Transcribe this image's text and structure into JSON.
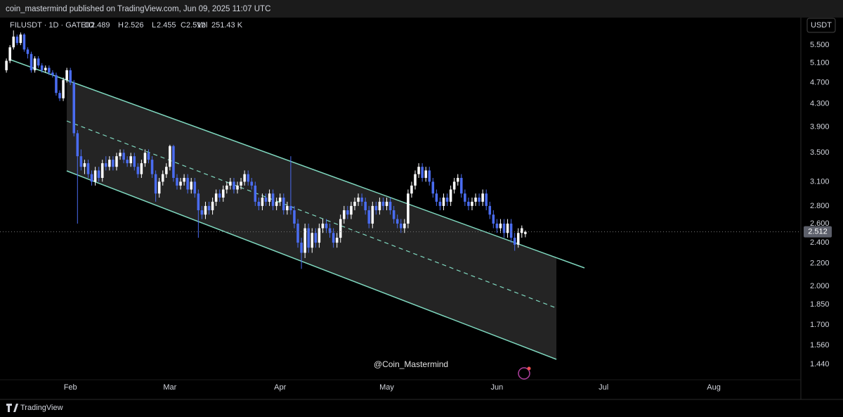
{
  "header": {
    "published": "coin_mastermind published on TradingView.com, Jun 09, 2025 11:07 UTC"
  },
  "footer": {
    "brand": "TradingView"
  },
  "chart_data": {
    "type": "candlestick",
    "symbol": "FILUSDT · 1D · GATEIO",
    "legend_keys": [
      "O",
      "H",
      "L",
      "C",
      "Vol"
    ],
    "volume": "251.43 K",
    "currency": "USDT",
    "watermark": "@Coin_Mastermind",
    "log_scale": true,
    "grid": false,
    "up_color": "#ffffff",
    "down_color": "#4a6cf0",
    "xlim": [
      -1.8,
      223.5
    ],
    "xticks": [
      {
        "value": 18,
        "label": "Feb"
      },
      {
        "value": 46,
        "label": "Mar"
      },
      {
        "value": 77,
        "label": "Apr"
      },
      {
        "value": 107,
        "label": "May"
      },
      {
        "value": 138,
        "label": "Jun"
      },
      {
        "value": 168,
        "label": "Jul"
      },
      {
        "value": 199,
        "label": "Aug"
      }
    ],
    "ylim": [
      1.35,
      6.12
    ],
    "yticks": [
      {
        "value": 5.5,
        "label": "5.500"
      },
      {
        "value": 5.1,
        "label": "5.100"
      },
      {
        "value": 4.7,
        "label": "4.700"
      },
      {
        "value": 4.3,
        "label": "4.300"
      },
      {
        "value": 3.9,
        "label": "3.900"
      },
      {
        "value": 3.5,
        "label": "3.500"
      },
      {
        "value": 3.1,
        "label": "3.100"
      },
      {
        "value": 2.8,
        "label": "2.800"
      },
      {
        "value": 2.6,
        "label": "2.600"
      },
      {
        "value": 2.4,
        "label": "2.400"
      },
      {
        "value": 2.2,
        "label": "2.200"
      },
      {
        "value": 2,
        "label": "2.000"
      },
      {
        "value": 1.85,
        "label": "1.850"
      },
      {
        "value": 1.7,
        "label": "1.700"
      },
      {
        "value": 1.56,
        "label": "1.560"
      },
      {
        "value": 1.44,
        "label": "1.440"
      }
    ],
    "values": [
      [
        4.95,
        5.2,
        4.9,
        5.15
      ],
      [
        5.15,
        5.5,
        5.1,
        5.45
      ],
      [
        5.45,
        5.85,
        5.4,
        5.7
      ],
      [
        5.7,
        5.75,
        5.5,
        5.55
      ],
      [
        5.55,
        5.8,
        5.5,
        5.75
      ],
      [
        5.75,
        5.78,
        5.35,
        5.4
      ],
      [
        5.4,
        5.45,
        5.2,
        5.3
      ],
      [
        5.3,
        5.35,
        4.9,
        4.95
      ],
      [
        4.95,
        5.25,
        4.9,
        5.2
      ],
      [
        5.2,
        5.25,
        5,
        5.05
      ],
      [
        5.05,
        5.1,
        4.9,
        4.95
      ],
      [
        4.95,
        5.05,
        4.9,
        5
      ],
      [
        5,
        5.05,
        4.85,
        4.9
      ],
      [
        4.9,
        4.95,
        4.8,
        4.85
      ],
      [
        4.85,
        4.9,
        4.45,
        4.5
      ],
      [
        4.5,
        4.55,
        4.35,
        4.4
      ],
      [
        4.4,
        4.8,
        4.35,
        4.75
      ],
      [
        4.75,
        5,
        4.7,
        4.95
      ],
      [
        4.95,
        5,
        4.65,
        4.7
      ],
      [
        4.7,
        4.75,
        3.75,
        3.8
      ],
      [
        3.8,
        3.85,
        2.6,
        3.45
      ],
      [
        3.45,
        3.55,
        3.25,
        3.3
      ],
      [
        3.3,
        3.4,
        3.2,
        3.35
      ],
      [
        3.35,
        3.4,
        3.15,
        3.2
      ],
      [
        3.2,
        3.25,
        3.05,
        3.1
      ],
      [
        3.1,
        3.3,
        3.05,
        3.25
      ],
      [
        3.25,
        3.3,
        3.1,
        3.15
      ],
      [
        3.15,
        3.4,
        3.1,
        3.35
      ],
      [
        3.35,
        3.45,
        3.25,
        3.3
      ],
      [
        3.3,
        3.45,
        3.25,
        3.4
      ],
      [
        3.4,
        3.45,
        3.25,
        3.3
      ],
      [
        3.3,
        3.5,
        3.25,
        3.45
      ],
      [
        3.45,
        3.55,
        3.4,
        3.5
      ],
      [
        3.5,
        3.55,
        3.35,
        3.4
      ],
      [
        3.4,
        3.45,
        3.3,
        3.35
      ],
      [
        3.35,
        3.5,
        3.3,
        3.45
      ],
      [
        3.45,
        3.5,
        3.25,
        3.3
      ],
      [
        3.3,
        3.35,
        3.15,
        3.2
      ],
      [
        3.2,
        3.4,
        3.15,
        3.35
      ],
      [
        3.35,
        3.55,
        3.3,
        3.5
      ],
      [
        3.5,
        3.55,
        3.35,
        3.4
      ],
      [
        3.4,
        3.45,
        3.15,
        3.2
      ],
      [
        3.2,
        3.25,
        2.85,
        2.95
      ],
      [
        2.95,
        3.15,
        2.9,
        3.1
      ],
      [
        3.1,
        3.25,
        3.05,
        3.2
      ],
      [
        3.2,
        3.35,
        3.15,
        3.3
      ],
      [
        3.3,
        3.62,
        3.25,
        3.6
      ],
      [
        3.6,
        3.62,
        3.1,
        3.15
      ],
      [
        3.15,
        3.2,
        3,
        3.05
      ],
      [
        3.05,
        3.15,
        3,
        3.1
      ],
      [
        3.1,
        3.2,
        3.05,
        3.15
      ],
      [
        3.15,
        3.2,
        2.95,
        3
      ],
      [
        3,
        3.15,
        2.95,
        3.1
      ],
      [
        3.1,
        3.15,
        2.9,
        2.95
      ],
      [
        2.95,
        3,
        2.45,
        2.75
      ],
      [
        2.75,
        2.8,
        2.65,
        2.7
      ],
      [
        2.7,
        2.85,
        2.65,
        2.8
      ],
      [
        2.8,
        2.85,
        2.7,
        2.75
      ],
      [
        2.75,
        2.9,
        2.7,
        2.85
      ],
      [
        2.85,
        3,
        2.8,
        2.95
      ],
      [
        2.95,
        3,
        2.85,
        2.9
      ],
      [
        2.9,
        3.05,
        2.85,
        3
      ],
      [
        3,
        3.1,
        2.95,
        3.05
      ],
      [
        3.05,
        3.15,
        3,
        3.1
      ],
      [
        3.1,
        3.15,
        2.95,
        3
      ],
      [
        3,
        3.1,
        2.95,
        3.05
      ],
      [
        3.05,
        3.15,
        3,
        3.1
      ],
      [
        3.1,
        3.25,
        3.05,
        3.2
      ],
      [
        3.2,
        3.25,
        3.05,
        3.1
      ],
      [
        3.1,
        3.15,
        3,
        3.05
      ],
      [
        3.05,
        3.1,
        2.8,
        2.85
      ],
      [
        2.85,
        2.9,
        2.75,
        2.8
      ],
      [
        2.8,
        2.95,
        2.75,
        2.9
      ],
      [
        2.9,
        2.95,
        2.8,
        2.85
      ],
      [
        2.85,
        3,
        2.8,
        2.95
      ],
      [
        2.95,
        3,
        2.75,
        2.8
      ],
      [
        2.8,
        2.9,
        2.75,
        2.85
      ],
      [
        2.85,
        2.95,
        2.8,
        2.9
      ],
      [
        2.9,
        2.95,
        2.7,
        2.75
      ],
      [
        2.75,
        2.85,
        2.7,
        2.8
      ],
      [
        2.8,
        3.45,
        2.7,
        2.75
      ],
      [
        2.75,
        2.8,
        2.55,
        2.6
      ],
      [
        2.6,
        2.65,
        2.35,
        2.4
      ],
      [
        2.4,
        2.45,
        2.15,
        2.3
      ],
      [
        2.3,
        2.6,
        2.25,
        2.55
      ],
      [
        2.55,
        2.6,
        2.3,
        2.35
      ],
      [
        2.35,
        2.55,
        2.3,
        2.5
      ],
      [
        2.5,
        2.55,
        2.35,
        2.4
      ],
      [
        2.4,
        2.6,
        2.35,
        2.55
      ],
      [
        2.55,
        2.65,
        2.5,
        2.6
      ],
      [
        2.6,
        2.65,
        2.5,
        2.55
      ],
      [
        2.55,
        2.6,
        2.45,
        2.5
      ],
      [
        2.5,
        2.55,
        2.35,
        2.4
      ],
      [
        2.4,
        2.5,
        2.35,
        2.45
      ],
      [
        2.45,
        2.7,
        2.4,
        2.65
      ],
      [
        2.65,
        2.8,
        2.6,
        2.75
      ],
      [
        2.75,
        2.8,
        2.65,
        2.7
      ],
      [
        2.7,
        2.85,
        2.65,
        2.8
      ],
      [
        2.8,
        2.9,
        2.75,
        2.85
      ],
      [
        2.85,
        2.95,
        2.8,
        2.9
      ],
      [
        2.9,
        2.95,
        2.8,
        2.85
      ],
      [
        2.85,
        2.9,
        2.7,
        2.75
      ],
      [
        2.75,
        2.8,
        2.55,
        2.6
      ],
      [
        2.6,
        2.85,
        2.55,
        2.8
      ],
      [
        2.8,
        2.85,
        2.7,
        2.75
      ],
      [
        2.75,
        2.9,
        2.7,
        2.85
      ],
      [
        2.85,
        2.9,
        2.75,
        2.8
      ],
      [
        2.8,
        2.9,
        2.75,
        2.85
      ],
      [
        2.85,
        2.9,
        2.7,
        2.75
      ],
      [
        2.75,
        2.8,
        2.6,
        2.65
      ],
      [
        2.65,
        2.7,
        2.55,
        2.6
      ],
      [
        2.6,
        2.65,
        2.5,
        2.55
      ],
      [
        2.55,
        2.65,
        2.5,
        2.6
      ],
      [
        2.6,
        3,
        2.55,
        2.95
      ],
      [
        2.95,
        3.1,
        2.9,
        3.05
      ],
      [
        3.05,
        3.25,
        3,
        3.2
      ],
      [
        3.2,
        3.35,
        3.15,
        3.3
      ],
      [
        3.3,
        3.35,
        3.1,
        3.15
      ],
      [
        3.15,
        3.3,
        3.1,
        3.25
      ],
      [
        3.25,
        3.3,
        3.05,
        3.1
      ],
      [
        3.1,
        3.15,
        2.9,
        2.95
      ],
      [
        2.95,
        3,
        2.8,
        2.85
      ],
      [
        2.85,
        2.9,
        2.75,
        2.8
      ],
      [
        2.8,
        2.95,
        2.75,
        2.9
      ],
      [
        2.9,
        2.95,
        2.8,
        2.85
      ],
      [
        2.85,
        3.05,
        2.8,
        3
      ],
      [
        3,
        3.15,
        2.95,
        3.1
      ],
      [
        3.1,
        3.2,
        3.05,
        3.15
      ],
      [
        3.15,
        3.2,
        2.9,
        2.95
      ],
      [
        2.95,
        3,
        2.8,
        2.85
      ],
      [
        2.85,
        2.9,
        2.75,
        2.8
      ],
      [
        2.8,
        2.9,
        2.75,
        2.85
      ],
      [
        2.85,
        2.95,
        2.8,
        2.9
      ],
      [
        2.9,
        2.95,
        2.8,
        2.85
      ],
      [
        2.85,
        3,
        2.8,
        2.95
      ],
      [
        2.95,
        3,
        2.75,
        2.8
      ],
      [
        2.8,
        2.85,
        2.65,
        2.7
      ],
      [
        2.7,
        2.75,
        2.55,
        2.6
      ],
      [
        2.6,
        2.65,
        2.5,
        2.55
      ],
      [
        2.55,
        2.65,
        2.5,
        2.6
      ],
      [
        2.6,
        2.65,
        2.45,
        2.5
      ],
      [
        2.5,
        2.65,
        2.45,
        2.6
      ],
      [
        2.6,
        2.65,
        2.4,
        2.45
      ],
      [
        2.45,
        2.5,
        2.32,
        2.38
      ],
      [
        2.38,
        2.55,
        2.35,
        2.5
      ],
      [
        2.5,
        2.58,
        2.45,
        2.55
      ],
      [
        2.489,
        2.526,
        2.455,
        2.512
      ]
    ]
  }
}
